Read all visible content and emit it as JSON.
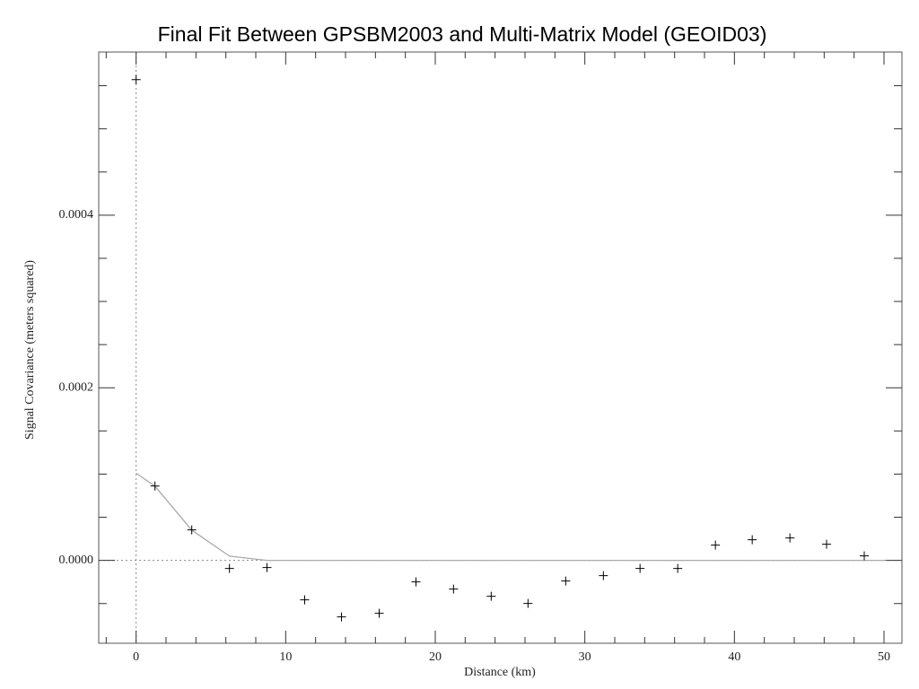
{
  "chart_data": {
    "type": "scatter",
    "title": "Final Fit Between GPSBM2003 and Multi-Matrix Model (GEOID03)",
    "x_label": "Distance (km)",
    "y_label": "Signal Covariance (meters squared)",
    "color": "#000000",
    "x": [
      0,
      1.26,
      3.72,
      6.24,
      8.75,
      11.27,
      13.73,
      16.25,
      18.71,
      21.22,
      23.74,
      26.2,
      28.72,
      31.24,
      33.69,
      36.21,
      38.73,
      41.19,
      43.71,
      46.16,
      48.68
    ],
    "values": [
      0.000557,
      8.62e-05,
      3.53e-05,
      -9.4e-06,
      -8.3e-06,
      -4.57e-05,
      -6.55e-05,
      -6.13e-05,
      -2.49e-05,
      -3.32e-05,
      -4.16e-05,
      -4.99e-05,
      -2.39e-05,
      -1.77e-05,
      -9.4e-06,
      -9.4e-06,
      1.77e-05,
      2.39e-05,
      2.6e-05,
      1.87e-05,
      5.2e-06
    ],
    "fit": {
      "color": "#aaaaaa",
      "x": [
        0,
        1.26,
        3.72,
        6.24,
        8.75,
        50
      ],
      "values": [
        0.000101,
        8.6e-05,
        3.5e-05,
        5e-06,
        0,
        0
      ]
    },
    "zero_lines": true,
    "xlim": [
      -2.5,
      51.2
    ],
    "ylim": [
      -9.6e-05,
      0.000589
    ],
    "xticks": [
      0,
      10,
      20,
      30,
      40,
      50
    ],
    "xminor": [
      -2,
      2,
      4,
      6,
      8,
      12,
      14,
      16,
      18,
      22,
      24,
      26,
      28,
      32,
      34,
      36,
      38,
      42,
      44,
      46,
      48
    ],
    "yticks": [
      {
        "value": 0,
        "label": "0.0000"
      },
      {
        "value": 0.0002,
        "label": "0.0002"
      },
      {
        "value": 0.0004,
        "label": "0.0004"
      }
    ],
    "yminor": [
      -5e-05,
      5e-05,
      0.0001,
      0.00015,
      0.00025,
      0.0003,
      0.00035,
      0.00045,
      0.0005,
      0.00055
    ]
  }
}
